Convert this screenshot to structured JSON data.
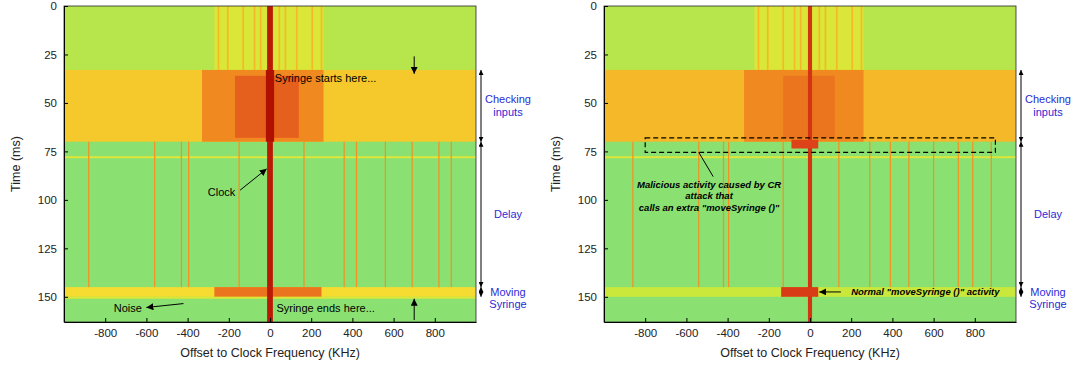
{
  "chart_data": [
    {
      "type": "heatmap",
      "x_label": "Offset to Clock Frequency (KHz)",
      "y_label": "Time (ms)",
      "xlim": [
        -1000,
        1000
      ],
      "ylim": [
        0,
        163
      ],
      "zlim": [
        0,
        1
      ],
      "xticks": [
        -800,
        -600,
        -400,
        -200,
        0,
        200,
        400,
        600,
        800
      ],
      "yticks": [
        0,
        25,
        50,
        75,
        100,
        125,
        150
      ],
      "cells": [
        {
          "x": [
            -1000,
            1000
          ],
          "t": [
            0,
            163
          ],
          "value": 0.22
        },
        {
          "x": [
            -1000,
            1000
          ],
          "t": [
            0,
            33
          ],
          "value": 0.3
        },
        {
          "x": [
            -270,
            260
          ],
          "t": [
            0,
            33
          ],
          "value": 0.4
        },
        {
          "x": [
            -1000,
            1000
          ],
          "t": [
            33,
            70
          ],
          "value": 0.56
        },
        {
          "x": [
            -330,
            260
          ],
          "t": [
            33,
            70
          ],
          "value": 0.7
        },
        {
          "x": [
            -170,
            140
          ],
          "t": [
            36,
            68
          ],
          "value": 0.78
        },
        {
          "x": [
            -1000,
            1000
          ],
          "t": [
            77.5,
            78.5
          ],
          "value": 0.42
        },
        {
          "x": [
            -1000,
            1000
          ],
          "t": [
            145,
            150
          ],
          "value": 0.52
        },
        {
          "x": [
            -270,
            250
          ],
          "t": [
            145,
            150
          ],
          "value": 0.74
        },
        {
          "x": [
            -1000,
            1000
          ],
          "t": [
            150,
            151
          ],
          "value": 0.4
        },
        {
          "x": [
            -254,
            -246
          ],
          "t": [
            0,
            33
          ],
          "value": 0.6
        },
        {
          "x": [
            -209,
            -201
          ],
          "t": [
            0,
            33
          ],
          "value": 0.6
        },
        {
          "x": [
            -134,
            -126
          ],
          "t": [
            0,
            33
          ],
          "value": 0.6
        },
        {
          "x": [
            -79,
            -71
          ],
          "t": [
            0,
            33
          ],
          "value": 0.6
        },
        {
          "x": [
            -49,
            -41
          ],
          "t": [
            0,
            33
          ],
          "value": 0.6
        },
        {
          "x": [
            41,
            49
          ],
          "t": [
            0,
            33
          ],
          "value": 0.6
        },
        {
          "x": [
            71,
            79
          ],
          "t": [
            0,
            33
          ],
          "value": 0.6
        },
        {
          "x": [
            126,
            134
          ],
          "t": [
            0,
            33
          ],
          "value": 0.6
        },
        {
          "x": [
            201,
            209
          ],
          "t": [
            0,
            33
          ],
          "value": 0.6
        },
        {
          "x": [
            246,
            254
          ],
          "t": [
            0,
            33
          ],
          "value": 0.6
        },
        {
          "x": [
            -883,
            -877
          ],
          "t": [
            70,
            145
          ],
          "value": 0.68
        },
        {
          "x": [
            -563,
            -557
          ],
          "t": [
            70,
            145
          ],
          "value": 0.68
        },
        {
          "x": [
            -433,
            -427
          ],
          "t": [
            70,
            145
          ],
          "value": 0.68
        },
        {
          "x": [
            -398,
            -392
          ],
          "t": [
            70,
            145
          ],
          "value": 0.68
        },
        {
          "x": [
            -153,
            -147
          ],
          "t": [
            70,
            145
          ],
          "value": 0.68
        },
        {
          "x": [
            162,
            168
          ],
          "t": [
            70,
            145
          ],
          "value": 0.68
        },
        {
          "x": [
            357,
            363
          ],
          "t": [
            70,
            145
          ],
          "value": 0.68
        },
        {
          "x": [
            417,
            423
          ],
          "t": [
            70,
            145
          ],
          "value": 0.68
        },
        {
          "x": [
            557,
            563
          ],
          "t": [
            70,
            145
          ],
          "value": 0.68
        },
        {
          "x": [
            687,
            693
          ],
          "t": [
            70,
            145
          ],
          "value": 0.68
        },
        {
          "x": [
            817,
            823
          ],
          "t": [
            70,
            145
          ],
          "value": 0.68
        },
        {
          "x": [
            877,
            883
          ],
          "t": [
            70,
            145
          ],
          "value": 0.68
        },
        {
          "x": [
            -14,
            14
          ],
          "t": [
            0,
            163
          ],
          "value": 0.97
        },
        {
          "x": [
            -20,
            20
          ],
          "t": [
            33,
            70
          ],
          "value": 1
        }
      ],
      "annotations": [
        {
          "text": "Syringe starts here...",
          "x": 270,
          "t": 37,
          "arrow": [
            [
              700,
              26
            ],
            [
              700,
              35
            ]
          ]
        },
        {
          "text": "Clock",
          "x": -235,
          "t": 96,
          "arrow": [
            [
              -145,
              95
            ],
            [
              -16,
              84
            ]
          ]
        },
        {
          "text": "Noise",
          "x": -690,
          "t": 156,
          "arrow": [
            [
              -420,
              153.5
            ],
            [
              -600,
              155.5
            ]
          ]
        },
        {
          "text": "Syringe ends here...",
          "x": 270,
          "t": 156,
          "arrow": [
            [
              700,
              162
            ],
            [
              700,
              151
            ]
          ]
        }
      ],
      "spans": [
        {
          "text": "Checking inputs",
          "t": [
            33,
            70
          ]
        },
        {
          "text": "Delay",
          "t": [
            70,
            145
          ]
        },
        {
          "text": "Moving Syringe",
          "t": [
            145,
            150
          ]
        }
      ]
    },
    {
      "type": "heatmap",
      "x_label": "Offset to Clock Frequency (KHz)",
      "y_label": "Time (ms)",
      "xlim": [
        -1000,
        1000
      ],
      "ylim": [
        0,
        163
      ],
      "zlim": [
        0,
        1
      ],
      "xticks": [
        -800,
        -600,
        -400,
        -200,
        0,
        200,
        400,
        600,
        800
      ],
      "yticks": [
        0,
        25,
        50,
        75,
        100,
        125,
        150
      ],
      "cells": [
        {
          "x": [
            -1000,
            1000
          ],
          "t": [
            0,
            163
          ],
          "value": 0.22
        },
        {
          "x": [
            -1000,
            1000
          ],
          "t": [
            0,
            33
          ],
          "value": 0.3
        },
        {
          "x": [
            -270,
            260
          ],
          "t": [
            0,
            33
          ],
          "value": 0.4
        },
        {
          "x": [
            -1000,
            1000
          ],
          "t": [
            33,
            70
          ],
          "value": 0.6
        },
        {
          "x": [
            -320,
            260
          ],
          "t": [
            33,
            70
          ],
          "value": 0.7
        },
        {
          "x": [
            -130,
            120
          ],
          "t": [
            36,
            68
          ],
          "value": 0.74
        },
        {
          "x": [
            -1000,
            1000
          ],
          "t": [
            77.5,
            78.5
          ],
          "value": 0.42
        },
        {
          "x": [
            -1000,
            1000
          ],
          "t": [
            145,
            150
          ],
          "value": 0.34
        },
        {
          "x": [
            -254,
            -246
          ],
          "t": [
            0,
            33
          ],
          "value": 0.6
        },
        {
          "x": [
            -209,
            -201
          ],
          "t": [
            0,
            33
          ],
          "value": 0.6
        },
        {
          "x": [
            -134,
            -126
          ],
          "t": [
            0,
            33
          ],
          "value": 0.6
        },
        {
          "x": [
            -79,
            -71
          ],
          "t": [
            0,
            33
          ],
          "value": 0.6
        },
        {
          "x": [
            -49,
            -41
          ],
          "t": [
            0,
            33
          ],
          "value": 0.6
        },
        {
          "x": [
            41,
            49
          ],
          "t": [
            0,
            33
          ],
          "value": 0.6
        },
        {
          "x": [
            71,
            79
          ],
          "t": [
            0,
            33
          ],
          "value": 0.6
        },
        {
          "x": [
            126,
            134
          ],
          "t": [
            0,
            33
          ],
          "value": 0.6
        },
        {
          "x": [
            201,
            209
          ],
          "t": [
            0,
            33
          ],
          "value": 0.6
        },
        {
          "x": [
            246,
            254
          ],
          "t": [
            0,
            33
          ],
          "value": 0.6
        },
        {
          "x": [
            -863,
            -857
          ],
          "t": [
            70,
            145
          ],
          "value": 0.68
        },
        {
          "x": [
            -543,
            -537
          ],
          "t": [
            70,
            145
          ],
          "value": 0.68
        },
        {
          "x": [
            -423,
            -417
          ],
          "t": [
            70,
            145
          ],
          "value": 0.68
        },
        {
          "x": [
            -398,
            -392
          ],
          "t": [
            70,
            145
          ],
          "value": 0.68
        },
        {
          "x": [
            -133,
            -127
          ],
          "t": [
            70,
            145
          ],
          "value": 0.68
        },
        {
          "x": [
            137,
            143
          ],
          "t": [
            70,
            145
          ],
          "value": 0.68
        },
        {
          "x": [
            287,
            293
          ],
          "t": [
            70,
            145
          ],
          "value": 0.68
        },
        {
          "x": [
            387,
            393
          ],
          "t": [
            70,
            145
          ],
          "value": 0.68
        },
        {
          "x": [
            477,
            483
          ],
          "t": [
            70,
            145
          ],
          "value": 0.68
        },
        {
          "x": [
            597,
            603
          ],
          "t": [
            70,
            145
          ],
          "value": 0.68
        },
        {
          "x": [
            717,
            723
          ],
          "t": [
            70,
            145
          ],
          "value": 0.68
        },
        {
          "x": [
            787,
            793
          ],
          "t": [
            70,
            145
          ],
          "value": 0.68
        },
        {
          "x": [
            877,
            883
          ],
          "t": [
            70,
            145
          ],
          "value": 0.68
        },
        {
          "x": [
            -10,
            10
          ],
          "t": [
            0,
            163
          ],
          "value": 0.88
        },
        {
          "x": [
            -90,
            40
          ],
          "t": [
            69,
            73.5
          ],
          "value": 0.84
        },
        {
          "x": [
            -140,
            40
          ],
          "t": [
            145,
            150
          ],
          "value": 0.86
        }
      ],
      "annotations": [
        {
          "lines": [
            "Malicious activity caused by CR",
            "attack that",
            "calls an extra \"moveSyringe ()\""
          ],
          "x": -490,
          "t": 98,
          "leader": [
            [
              -470,
              88
            ],
            [
              -540,
              75.5
            ]
          ]
        },
        {
          "text": "Normal \"moveSyringe ()\" activity",
          "x": 560,
          "t": 147.5,
          "arrow": [
            [
              150,
              147.5
            ],
            [
              45,
              147.5
            ]
          ]
        }
      ],
      "boxes": [
        {
          "x": [
            -800,
            900
          ],
          "t": [
            68,
            75.5
          ]
        }
      ],
      "spans": [
        {
          "text": "Checking inputs",
          "t": [
            33,
            70
          ]
        },
        {
          "text": "Delay",
          "t": [
            70,
            145
          ]
        },
        {
          "text": "Moving Syringe",
          "t": [
            145,
            150
          ]
        }
      ]
    }
  ]
}
